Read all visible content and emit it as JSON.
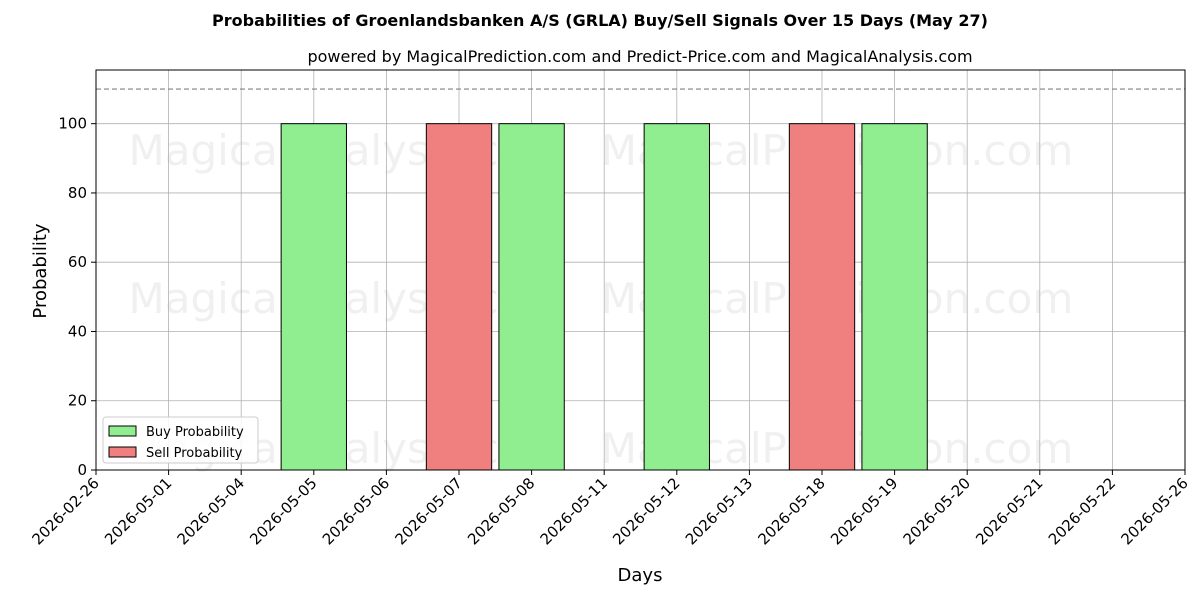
{
  "chart_data": {
    "type": "bar",
    "title": "Probabilities of Groenlandsbanken A/S (GRLA) Buy/Sell Signals Over 15 Days (May 27)",
    "subtitle": "powered by MagicalPrediction.com and Predict-Price.com and MagicalAnalysis.com",
    "xlabel": "Days",
    "ylabel": "Probability",
    "categories": [
      "2026-02-26",
      "2026-05-01",
      "2026-05-04",
      "2026-05-05",
      "2026-05-06",
      "2026-05-07",
      "2026-05-08",
      "2026-05-11",
      "2026-05-12",
      "2026-05-13",
      "2026-05-18",
      "2026-05-19",
      "2026-05-20",
      "2026-05-21",
      "2026-05-22",
      "2026-05-26"
    ],
    "yticks": [
      0,
      20,
      40,
      60,
      80,
      100
    ],
    "ylim": [
      0,
      115.5
    ],
    "reference_line": 110,
    "grid": true,
    "legend_position": "lower-left",
    "series": [
      {
        "name": "Buy Probability",
        "color": "#90ee90",
        "values": [
          0,
          0,
          0,
          100,
          0,
          0,
          100,
          0,
          100,
          0,
          0,
          100,
          0,
          0,
          0,
          0
        ]
      },
      {
        "name": "Sell Probability",
        "color": "#f08080",
        "values": [
          0,
          0,
          0,
          0,
          0,
          100,
          0,
          0,
          0,
          0,
          100,
          0,
          0,
          0,
          0,
          0
        ]
      }
    ],
    "watermarks": [
      "MagicalAnalysis.com",
      "MagicalPrediction.com"
    ]
  }
}
